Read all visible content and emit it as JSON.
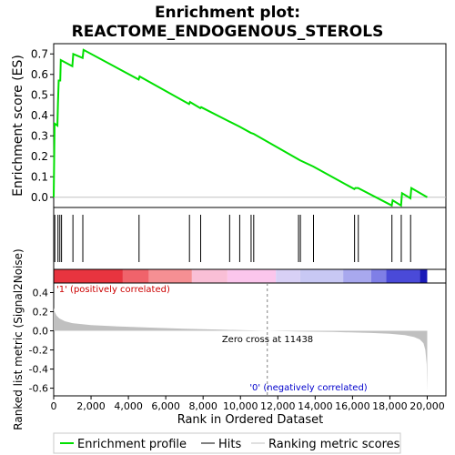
{
  "chart_data": {
    "type": "line",
    "title_line1": "Enrichment plot:",
    "title_line2": "REACTOME_ENDOGENOUS_STEROLS",
    "es_panel": {
      "ylabel": "Enrichment score (ES)",
      "ylim": [
        -0.05,
        0.75
      ],
      "yticks": [
        0.0,
        0.1,
        0.2,
        0.3,
        0.4,
        0.5,
        0.6,
        0.7
      ],
      "ytick_labels": [
        "0.0",
        "0.1",
        "0.2",
        "0.3",
        "0.4",
        "0.5",
        "0.6",
        "0.7"
      ],
      "profile": [
        {
          "x": 0,
          "y": 0.0
        },
        {
          "x": 50,
          "y": 0.36
        },
        {
          "x": 200,
          "y": 0.35
        },
        {
          "x": 230,
          "y": 0.46
        },
        {
          "x": 270,
          "y": 0.57
        },
        {
          "x": 350,
          "y": 0.57
        },
        {
          "x": 380,
          "y": 0.67
        },
        {
          "x": 1000,
          "y": 0.64
        },
        {
          "x": 1050,
          "y": 0.7
        },
        {
          "x": 1550,
          "y": 0.68
        },
        {
          "x": 1600,
          "y": 0.72
        },
        {
          "x": 4550,
          "y": 0.575
        },
        {
          "x": 4600,
          "y": 0.59
        },
        {
          "x": 7250,
          "y": 0.455
        },
        {
          "x": 7300,
          "y": 0.465
        },
        {
          "x": 7850,
          "y": 0.435
        },
        {
          "x": 7900,
          "y": 0.44
        },
        {
          "x": 9400,
          "y": 0.37
        },
        {
          "x": 9950,
          "y": 0.345
        },
        {
          "x": 10550,
          "y": 0.315
        },
        {
          "x": 10700,
          "y": 0.31
        },
        {
          "x": 13100,
          "y": 0.185
        },
        {
          "x": 13200,
          "y": 0.18
        },
        {
          "x": 13900,
          "y": 0.15
        },
        {
          "x": 16100,
          "y": 0.04
        },
        {
          "x": 16150,
          "y": 0.045
        },
        {
          "x": 16300,
          "y": 0.045
        },
        {
          "x": 18100,
          "y": -0.04
        },
        {
          "x": 18150,
          "y": -0.015
        },
        {
          "x": 18600,
          "y": -0.04
        },
        {
          "x": 18650,
          "y": 0.02
        },
        {
          "x": 19100,
          "y": -0.005
        },
        {
          "x": 19150,
          "y": 0.045
        },
        {
          "x": 20000,
          "y": 0.0
        }
      ]
    },
    "hits": [
      60,
      230,
      330,
      420,
      1030,
      1560,
      4570,
      7270,
      7870,
      9420,
      9960,
      10570,
      10710,
      13110,
      13210,
      13910,
      16110,
      16310,
      18110,
      18610,
      19110
    ],
    "colorbar": {
      "bands": [
        {
          "from": 0,
          "to": 3700,
          "color": "#e8343f"
        },
        {
          "from": 3700,
          "to": 5100,
          "color": "#f0636b"
        },
        {
          "from": 5100,
          "to": 7400,
          "color": "#f58f93"
        },
        {
          "from": 7400,
          "to": 9300,
          "color": "#f9bfd6"
        },
        {
          "from": 9300,
          "to": 11900,
          "color": "#fbc6ec"
        },
        {
          "from": 11900,
          "to": 13200,
          "color": "#d8d0f5"
        },
        {
          "from": 13200,
          "to": 15500,
          "color": "#c8c8f4"
        },
        {
          "from": 15500,
          "to": 17000,
          "color": "#a8a8ee"
        },
        {
          "from": 17000,
          "to": 17800,
          "color": "#7f7fe6"
        },
        {
          "from": 17800,
          "to": 19600,
          "color": "#4a4ad8"
        },
        {
          "from": 19600,
          "to": 20000,
          "color": "#1a1ab8"
        }
      ]
    },
    "rank_panel": {
      "ylabel": "Ranked list metric (Signal2Noise)",
      "ylim": [
        -0.68,
        0.5
      ],
      "yticks": [
        -0.6,
        -0.4,
        -0.2,
        0.0,
        0.2,
        0.4
      ],
      "ytick_labels": [
        "-0.6",
        "-0.4",
        "-0.2",
        "0.0",
        "0.2",
        "0.4"
      ],
      "metric": [
        {
          "x": 0,
          "y": 0.24
        },
        {
          "x": 50,
          "y": 0.2
        },
        {
          "x": 150,
          "y": 0.16
        },
        {
          "x": 300,
          "y": 0.13
        },
        {
          "x": 600,
          "y": 0.1
        },
        {
          "x": 1000,
          "y": 0.08
        },
        {
          "x": 2000,
          "y": 0.06
        },
        {
          "x": 3500,
          "y": 0.045
        },
        {
          "x": 5000,
          "y": 0.035
        },
        {
          "x": 7000,
          "y": 0.022
        },
        {
          "x": 9000,
          "y": 0.012
        },
        {
          "x": 11438,
          "y": 0.0
        },
        {
          "x": 13000,
          "y": -0.006
        },
        {
          "x": 15000,
          "y": -0.012
        },
        {
          "x": 17000,
          "y": -0.022
        },
        {
          "x": 18000,
          "y": -0.03
        },
        {
          "x": 18800,
          "y": -0.045
        },
        {
          "x": 19300,
          "y": -0.065
        },
        {
          "x": 19600,
          "y": -0.09
        },
        {
          "x": 19800,
          "y": -0.13
        },
        {
          "x": 19900,
          "y": -0.2
        },
        {
          "x": 19970,
          "y": -0.35
        },
        {
          "x": 20000,
          "y": -0.64
        }
      ],
      "zero_cross": 11438,
      "zero_cross_label": "Zero cross at 11438",
      "pos_label": "'1' (positively correlated)",
      "neg_label": "'0' (negatively correlated)"
    },
    "xlabel": "Rank in Ordered Dataset",
    "xlim": [
      0,
      21000
    ],
    "xticks": [
      0,
      2000,
      4000,
      6000,
      8000,
      10000,
      12000,
      14000,
      16000,
      18000,
      20000
    ],
    "xtick_labels": [
      "0",
      "2,000",
      "4,000",
      "6,000",
      "8,000",
      "10,000",
      "12,000",
      "14,000",
      "16,000",
      "18,000",
      "20,000"
    ],
    "legend": {
      "placement": "bottom",
      "entries": [
        "Enrichment profile",
        "Hits",
        "Ranking metric scores"
      ]
    },
    "colors": {
      "profile": "#00e000",
      "hits": "#000000",
      "metric": "#c0c0c0",
      "zero_line": "#808080",
      "pos_label": "#cc0000",
      "neg_label": "#0000cc"
    }
  }
}
